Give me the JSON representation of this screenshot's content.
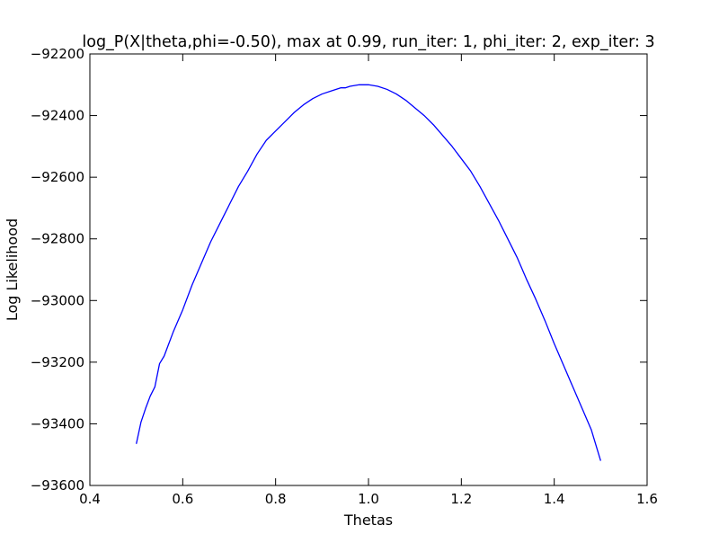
{
  "chart_data": {
    "type": "line",
    "title": "log_P(X|theta,phi=-0.50), max at 0.99, run_iter: 1, phi_iter: 2, exp_iter: 3",
    "xlabel": "Thetas",
    "ylabel": "Log Likelihood",
    "xlim": [
      0.4,
      1.6
    ],
    "ylim": [
      -93600,
      -92200
    ],
    "x_ticks": [
      0.4,
      0.6,
      0.8,
      1.0,
      1.2,
      1.4,
      1.6
    ],
    "x_tick_labels": [
      "0.4",
      "0.6",
      "0.8",
      "1.0",
      "1.2",
      "1.4",
      "1.6"
    ],
    "y_ticks": [
      -92200,
      -92400,
      -92600,
      -92800,
      -93000,
      -93200,
      -93400,
      -93600
    ],
    "y_tick_labels": [
      "−92200",
      "−92400",
      "−92600",
      "−92800",
      "−93000",
      "−93200",
      "−93400",
      "−93600"
    ],
    "grid": false,
    "line_color": "#0000ff",
    "x": [
      0.5,
      0.51,
      0.52,
      0.53,
      0.54,
      0.55,
      0.56,
      0.57,
      0.58,
      0.6,
      0.62,
      0.64,
      0.66,
      0.68,
      0.7,
      0.72,
      0.74,
      0.76,
      0.78,
      0.8,
      0.82,
      0.84,
      0.86,
      0.88,
      0.9,
      0.92,
      0.94,
      0.95,
      0.96,
      0.98,
      1.0,
      1.02,
      1.04,
      1.06,
      1.08,
      1.1,
      1.12,
      1.14,
      1.16,
      1.18,
      1.2,
      1.22,
      1.24,
      1.26,
      1.28,
      1.3,
      1.32,
      1.34,
      1.36,
      1.38,
      1.4,
      1.42,
      1.44,
      1.46,
      1.48,
      1.5
    ],
    "y": [
      -93465,
      -93395,
      -93350,
      -93310,
      -93280,
      -93205,
      -93180,
      -93140,
      -93100,
      -93030,
      -92950,
      -92880,
      -92810,
      -92750,
      -92690,
      -92630,
      -92580,
      -92525,
      -92480,
      -92450,
      -92420,
      -92390,
      -92365,
      -92345,
      -92330,
      -92320,
      -92310,
      -92310,
      -92305,
      -92300,
      -92300,
      -92305,
      -92315,
      -92330,
      -92350,
      -92375,
      -92400,
      -92430,
      -92465,
      -92500,
      -92540,
      -92580,
      -92630,
      -92685,
      -92740,
      -92800,
      -92860,
      -92930,
      -92995,
      -93065,
      -93140,
      -93210,
      -93280,
      -93350,
      -93420,
      -93520
    ]
  }
}
